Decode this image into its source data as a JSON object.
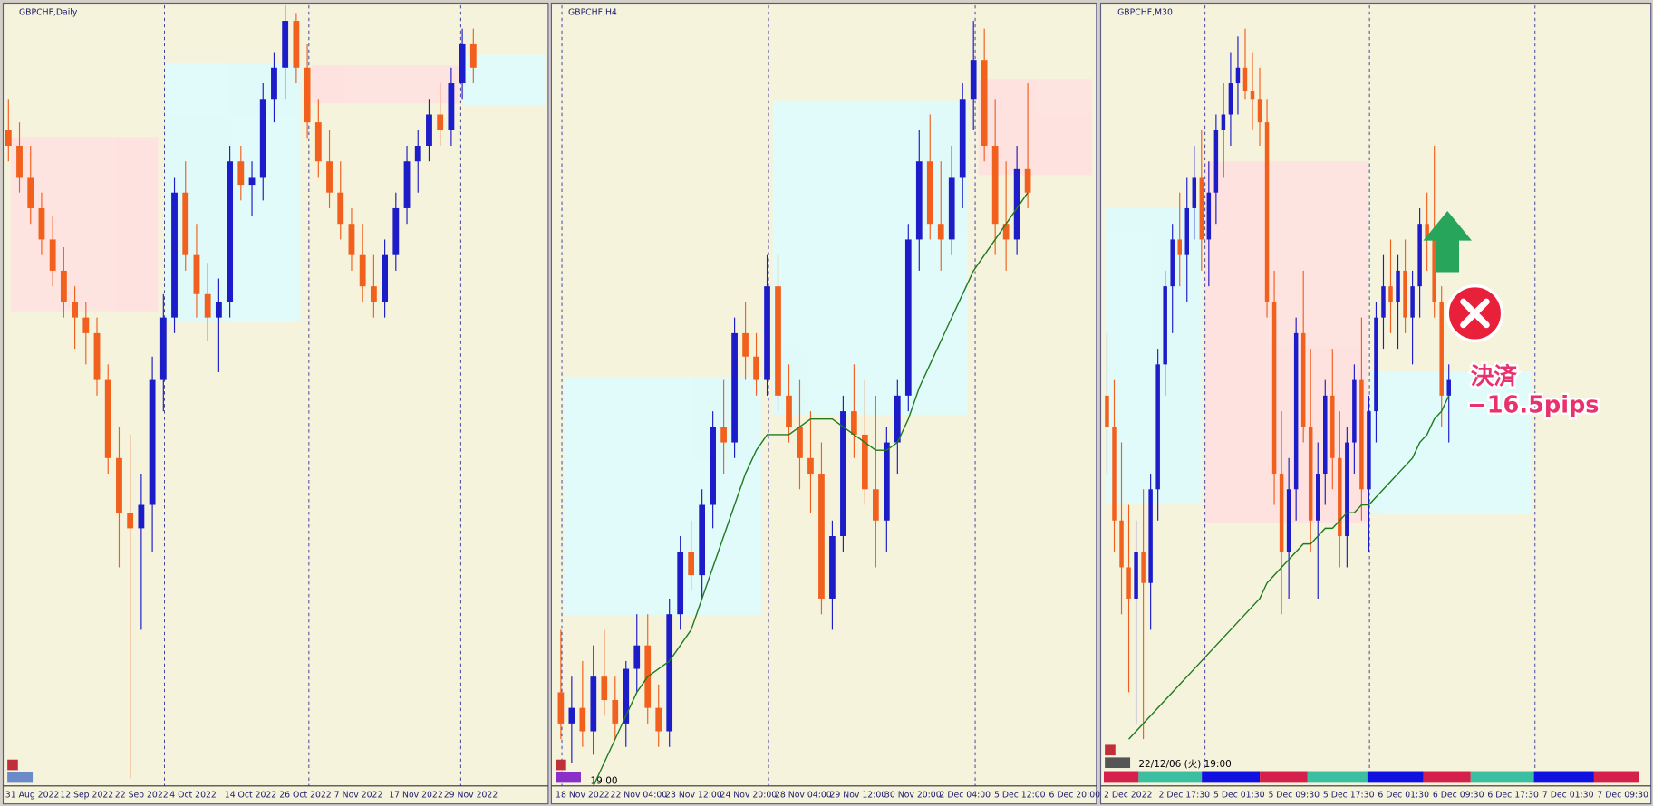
{
  "panels": [
    {
      "title": "GBPCHF,Daily",
      "ylim": [
        0,
        100
      ],
      "colors": {
        "up": "#1c1cc8",
        "down": "#f2601e"
      },
      "xlabels": [
        "31 Aug 2022",
        "12 Sep 2022",
        "22 Sep 2022",
        "4 Oct 2022",
        "14 Oct 2022",
        "26 Oct 2022",
        "7 Nov 2022",
        "17 Nov 2022",
        "29 Nov 2022"
      ],
      "candles": [
        [
          84,
          88,
          80,
          82
        ],
        [
          82,
          85,
          76,
          78
        ],
        [
          78,
          82,
          72,
          74
        ],
        [
          74,
          76,
          68,
          70
        ],
        [
          70,
          73,
          64,
          66
        ],
        [
          66,
          69,
          60,
          62
        ],
        [
          62,
          64,
          56,
          60
        ],
        [
          60,
          62,
          54,
          58
        ],
        [
          58,
          60,
          50,
          52
        ],
        [
          52,
          54,
          40,
          42
        ],
        [
          42,
          46,
          28,
          35
        ],
        [
          35,
          45,
          1,
          33
        ],
        [
          33,
          40,
          20,
          36
        ],
        [
          36,
          55,
          30,
          52
        ],
        [
          52,
          63,
          48,
          60
        ],
        [
          60,
          78,
          58,
          76
        ],
        [
          76,
          80,
          66,
          68
        ],
        [
          68,
          72,
          60,
          63
        ],
        [
          63,
          67,
          57,
          60
        ],
        [
          60,
          65,
          53,
          62
        ],
        [
          62,
          82,
          60,
          80
        ],
        [
          80,
          82,
          75,
          77
        ],
        [
          77,
          80,
          73,
          78
        ],
        [
          78,
          90,
          75,
          88
        ],
        [
          88,
          94,
          85,
          92
        ],
        [
          92,
          100,
          88,
          98
        ],
        [
          98,
          99,
          90,
          92
        ],
        [
          92,
          95,
          83,
          85
        ],
        [
          85,
          88,
          78,
          80
        ],
        [
          80,
          84,
          74,
          76
        ],
        [
          76,
          80,
          70,
          72
        ],
        [
          72,
          74,
          66,
          68
        ],
        [
          68,
          72,
          62,
          64
        ],
        [
          64,
          68,
          60,
          62
        ],
        [
          62,
          70,
          60,
          68
        ],
        [
          68,
          76,
          66,
          74
        ],
        [
          74,
          82,
          72,
          80
        ],
        [
          80,
          84,
          76,
          82
        ],
        [
          82,
          88,
          80,
          86
        ],
        [
          86,
          90,
          82,
          84
        ],
        [
          84,
          92,
          82,
          90
        ],
        [
          90,
          97,
          88,
          95
        ],
        [
          95,
          97,
          90,
          92
        ]
      ]
    },
    {
      "title": "GBPCHF,H4",
      "ylim": [
        0,
        100
      ],
      "colors": {
        "up": "#1c1cc8",
        "down": "#f2601e"
      },
      "ma_color": "#1f7a1f",
      "cursor_label": "19:00",
      "xlabels": [
        "18 Nov 2022",
        "22 Nov 04:00",
        "23 Nov 12:00",
        "24 Nov 20:00",
        "28 Nov 04:00",
        "29 Nov 12:00",
        "30 Nov 20:00",
        "2 Dec 04:00",
        "5 Dec 12:00",
        "6 Dec 20:00"
      ],
      "candles": [
        [
          12,
          20,
          6,
          8
        ],
        [
          8,
          14,
          3,
          10
        ],
        [
          10,
          16,
          5,
          7
        ],
        [
          7,
          18,
          4,
          14
        ],
        [
          14,
          20,
          9,
          11
        ],
        [
          11,
          14,
          6,
          8
        ],
        [
          8,
          16,
          5,
          15
        ],
        [
          15,
          22,
          12,
          18
        ],
        [
          18,
          22,
          8,
          10
        ],
        [
          10,
          13,
          5,
          7
        ],
        [
          7,
          24,
          5,
          22
        ],
        [
          22,
          32,
          20,
          30
        ],
        [
          30,
          34,
          25,
          27
        ],
        [
          27,
          38,
          24,
          36
        ],
        [
          36,
          48,
          33,
          46
        ],
        [
          46,
          52,
          40,
          44
        ],
        [
          44,
          60,
          42,
          58
        ],
        [
          58,
          62,
          52,
          55
        ],
        [
          55,
          58,
          50,
          52
        ],
        [
          52,
          68,
          50,
          64
        ],
        [
          64,
          68,
          48,
          50
        ],
        [
          50,
          54,
          44,
          46
        ],
        [
          46,
          52,
          38,
          42
        ],
        [
          42,
          48,
          35,
          40
        ],
        [
          40,
          44,
          22,
          24
        ],
        [
          24,
          34,
          20,
          32
        ],
        [
          32,
          50,
          30,
          48
        ],
        [
          48,
          54,
          42,
          45
        ],
        [
          45,
          52,
          36,
          38
        ],
        [
          38,
          50,
          28,
          34
        ],
        [
          34,
          46,
          30,
          44
        ],
        [
          44,
          52,
          40,
          50
        ],
        [
          50,
          72,
          48,
          70
        ],
        [
          70,
          84,
          66,
          80
        ],
        [
          80,
          86,
          70,
          72
        ],
        [
          72,
          80,
          66,
          70
        ],
        [
          70,
          82,
          68,
          78
        ],
        [
          78,
          90,
          74,
          88
        ],
        [
          88,
          98,
          84,
          93
        ],
        [
          93,
          97,
          80,
          82
        ],
        [
          82,
          88,
          68,
          72
        ],
        [
          72,
          80,
          66,
          70
        ],
        [
          70,
          82,
          68,
          79
        ],
        [
          79,
          90,
          74,
          76
        ]
      ],
      "ma": [
        null,
        null,
        null,
        0,
        3,
        6,
        9,
        12,
        14,
        15,
        16,
        18,
        20,
        24,
        28,
        32,
        36,
        40,
        43,
        45,
        45,
        45,
        46,
        47,
        47,
        47,
        46,
        45,
        44,
        43,
        43,
        44,
        47,
        51,
        54,
        57,
        60,
        63,
        66,
        68,
        70,
        72,
        74,
        76
      ]
    },
    {
      "title": "GBPCHF,M30",
      "ylim": [
        0,
        100
      ],
      "colors": {
        "up": "#1c1cc8",
        "down": "#f2601e"
      },
      "ma_color": "#1f7a1f",
      "cursor_label": "22/12/06 (火) 19:00",
      "xlabels": [
        "2 Dec 2022",
        "2 Dec 17:30",
        "5 Dec 01:30",
        "5 Dec 09:30",
        "5 Dec 17:30",
        "6 Dec 01:30",
        "6 Dec 09:30",
        "6 Dec 17:30",
        "7 Dec 01:30",
        "7 Dec 09:30"
      ],
      "candles": [
        [
          50,
          58,
          40,
          46
        ],
        [
          46,
          52,
          30,
          34
        ],
        [
          34,
          44,
          22,
          28
        ],
        [
          28,
          36,
          12,
          24
        ],
        [
          24,
          34,
          8,
          30
        ],
        [
          30,
          38,
          6,
          26
        ],
        [
          26,
          40,
          20,
          38
        ],
        [
          38,
          56,
          34,
          54
        ],
        [
          54,
          66,
          50,
          64
        ],
        [
          64,
          72,
          58,
          70
        ],
        [
          70,
          76,
          64,
          68
        ],
        [
          68,
          78,
          62,
          74
        ],
        [
          74,
          82,
          70,
          78
        ],
        [
          78,
          84,
          66,
          70
        ],
        [
          70,
          80,
          64,
          76
        ],
        [
          76,
          86,
          72,
          84
        ],
        [
          84,
          90,
          78,
          86
        ],
        [
          86,
          94,
          82,
          90
        ],
        [
          90,
          96,
          86,
          92
        ],
        [
          92,
          97,
          88,
          89
        ],
        [
          89,
          94,
          84,
          88
        ],
        [
          88,
          92,
          82,
          85
        ],
        [
          85,
          88,
          60,
          62
        ],
        [
          62,
          66,
          36,
          40
        ],
        [
          40,
          48,
          22,
          30
        ],
        [
          30,
          42,
          24,
          38
        ],
        [
          38,
          60,
          34,
          58
        ],
        [
          58,
          66,
          44,
          46
        ],
        [
          46,
          56,
          30,
          34
        ],
        [
          34,
          44,
          24,
          40
        ],
        [
          40,
          52,
          36,
          50
        ],
        [
          50,
          56,
          38,
          42
        ],
        [
          42,
          48,
          28,
          32
        ],
        [
          32,
          46,
          28,
          44
        ],
        [
          44,
          54,
          40,
          52
        ],
        [
          52,
          60,
          34,
          38
        ],
        [
          38,
          50,
          30,
          48
        ],
        [
          48,
          62,
          44,
          60
        ],
        [
          60,
          68,
          56,
          64
        ],
        [
          64,
          70,
          58,
          62
        ],
        [
          62,
          68,
          56,
          66
        ],
        [
          66,
          70,
          58,
          60
        ],
        [
          60,
          66,
          54,
          64
        ],
        [
          64,
          74,
          60,
          72
        ],
        [
          72,
          76,
          66,
          70
        ],
        [
          70,
          82,
          60,
          62
        ],
        [
          62,
          64,
          46,
          50
        ],
        [
          50,
          54,
          44,
          52
        ]
      ],
      "ma": [
        null,
        null,
        null,
        6,
        7,
        8,
        9,
        10,
        11,
        12,
        13,
        14,
        15,
        16,
        17,
        18,
        19,
        20,
        21,
        22,
        23,
        24,
        26,
        27,
        28,
        29,
        30,
        31,
        31,
        32,
        33,
        33,
        34,
        35,
        35,
        36,
        36,
        37,
        38,
        39,
        40,
        41,
        42,
        44,
        45,
        47,
        48,
        50
      ]
    }
  ],
  "annotation": {
    "action": "決済",
    "result": "−16.5pips"
  }
}
